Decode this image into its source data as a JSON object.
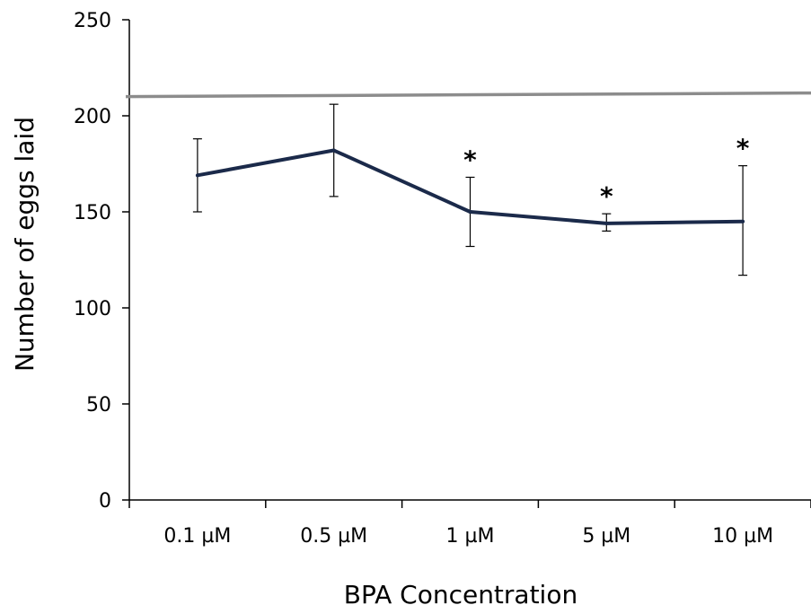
{
  "chart_data": {
    "type": "line",
    "title": "",
    "xlabel": "BPA Concentration",
    "ylabel": "Number of eggs laid",
    "categories": [
      "0.1 µM",
      "0.5  µM",
      "1 µM",
      "5 µM",
      "10 µM"
    ],
    "series": [
      {
        "values": [
          169,
          182,
          150,
          144,
          145
        ],
        "error_low": [
          150,
          158,
          132,
          140,
          117
        ],
        "error_high": [
          188,
          206,
          168,
          149,
          174
        ],
        "color": "#1b2a4a",
        "significance": [
          "",
          "",
          "*",
          "*",
          "*"
        ]
      }
    ],
    "reference_line": {
      "value": 210,
      "color": "#8c8c8c"
    },
    "ylim": [
      0,
      250
    ],
    "yticks": [
      0,
      50,
      100,
      150,
      200,
      250
    ],
    "grid": false,
    "legend": "none"
  }
}
